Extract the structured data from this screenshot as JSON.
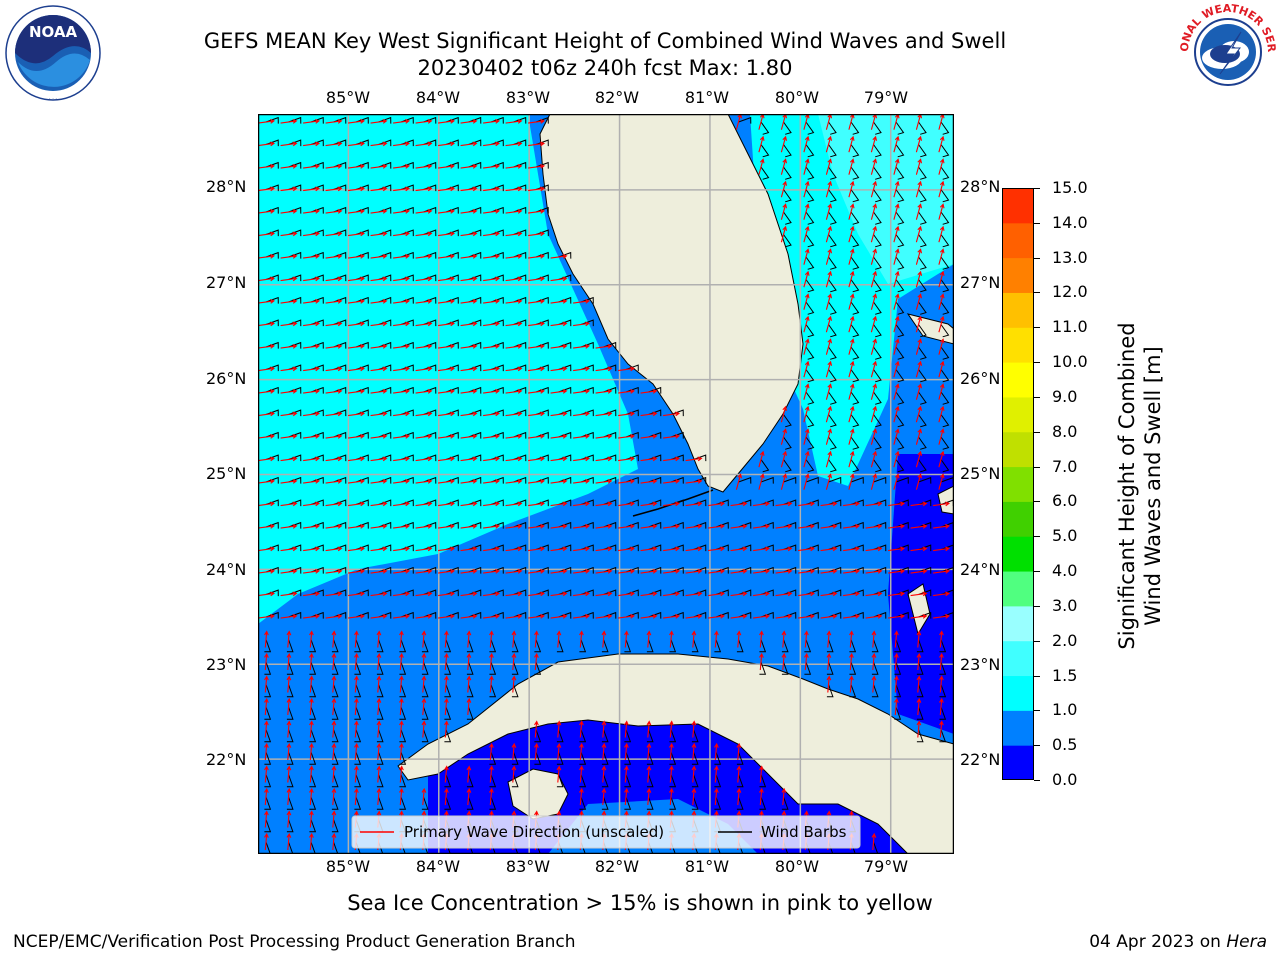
{
  "header": {
    "title_line1": "GEFS MEAN Key West Significant Height of Combined Wind Waves and Swell",
    "title_line2": "20230402 t06z 240h fcst   Max: 1.80"
  },
  "logos": {
    "left": {
      "name": "NOAA",
      "ring_text": "NATIONAL OCEANIC AND ATMOSPHERIC ADMINISTRATION · U.S. DEPARTMENT OF COMMERCE"
    },
    "right": {
      "name": "NATIONAL WEATHER SERVICE"
    }
  },
  "map": {
    "lon_labels": [
      "85°W",
      "84°W",
      "83°W",
      "82°W",
      "81°W",
      "80°W",
      "79°W"
    ],
    "lat_labels": [
      "28°N",
      "27°N",
      "26°N",
      "25°N",
      "24°N",
      "23°N",
      "22°N"
    ],
    "extent": {
      "lon_min": -86.0,
      "lon_max": -78.3,
      "lat_min": 21.0,
      "lat_max": 28.8
    },
    "land_color": "#eeeedc",
    "legend": {
      "wave_direction_label": "Primary Wave Direction (unscaled)",
      "wind_barbs_label": "Wind Barbs",
      "wave_color": "#ff0000",
      "barb_color": "#000000"
    }
  },
  "colorbar": {
    "label": "Significant Height of Combined\nWind Waves and Swell [m]",
    "ticks": [
      "15.0",
      "14.0",
      "13.0",
      "12.0",
      "11.0",
      "10.0",
      "9.0",
      "8.0",
      "7.0",
      "6.0",
      "5.0",
      "4.0",
      "3.0",
      "2.0",
      "1.5",
      "1.0",
      "0.5",
      "0.0"
    ],
    "colors_bottom_to_top": [
      "#0000ff",
      "#0080ff",
      "#00ffff",
      "#40ffff",
      "#99ffff",
      "#50ff80",
      "#00e000",
      "#40d000",
      "#80e000",
      "#c0e000",
      "#e0f000",
      "#ffff00",
      "#ffe000",
      "#ffc000",
      "#ff8000",
      "#ff6000",
      "#ff3000",
      "#ff0000"
    ]
  },
  "notes": {
    "sea_ice": "Sea Ice Concentration > 15% is shown in pink to yellow"
  },
  "footer": {
    "left": "NCEP/EMC/Verification Post Processing Product Generation Branch",
    "date": "04 Apr 2023 on ",
    "machine": "Hera"
  }
}
